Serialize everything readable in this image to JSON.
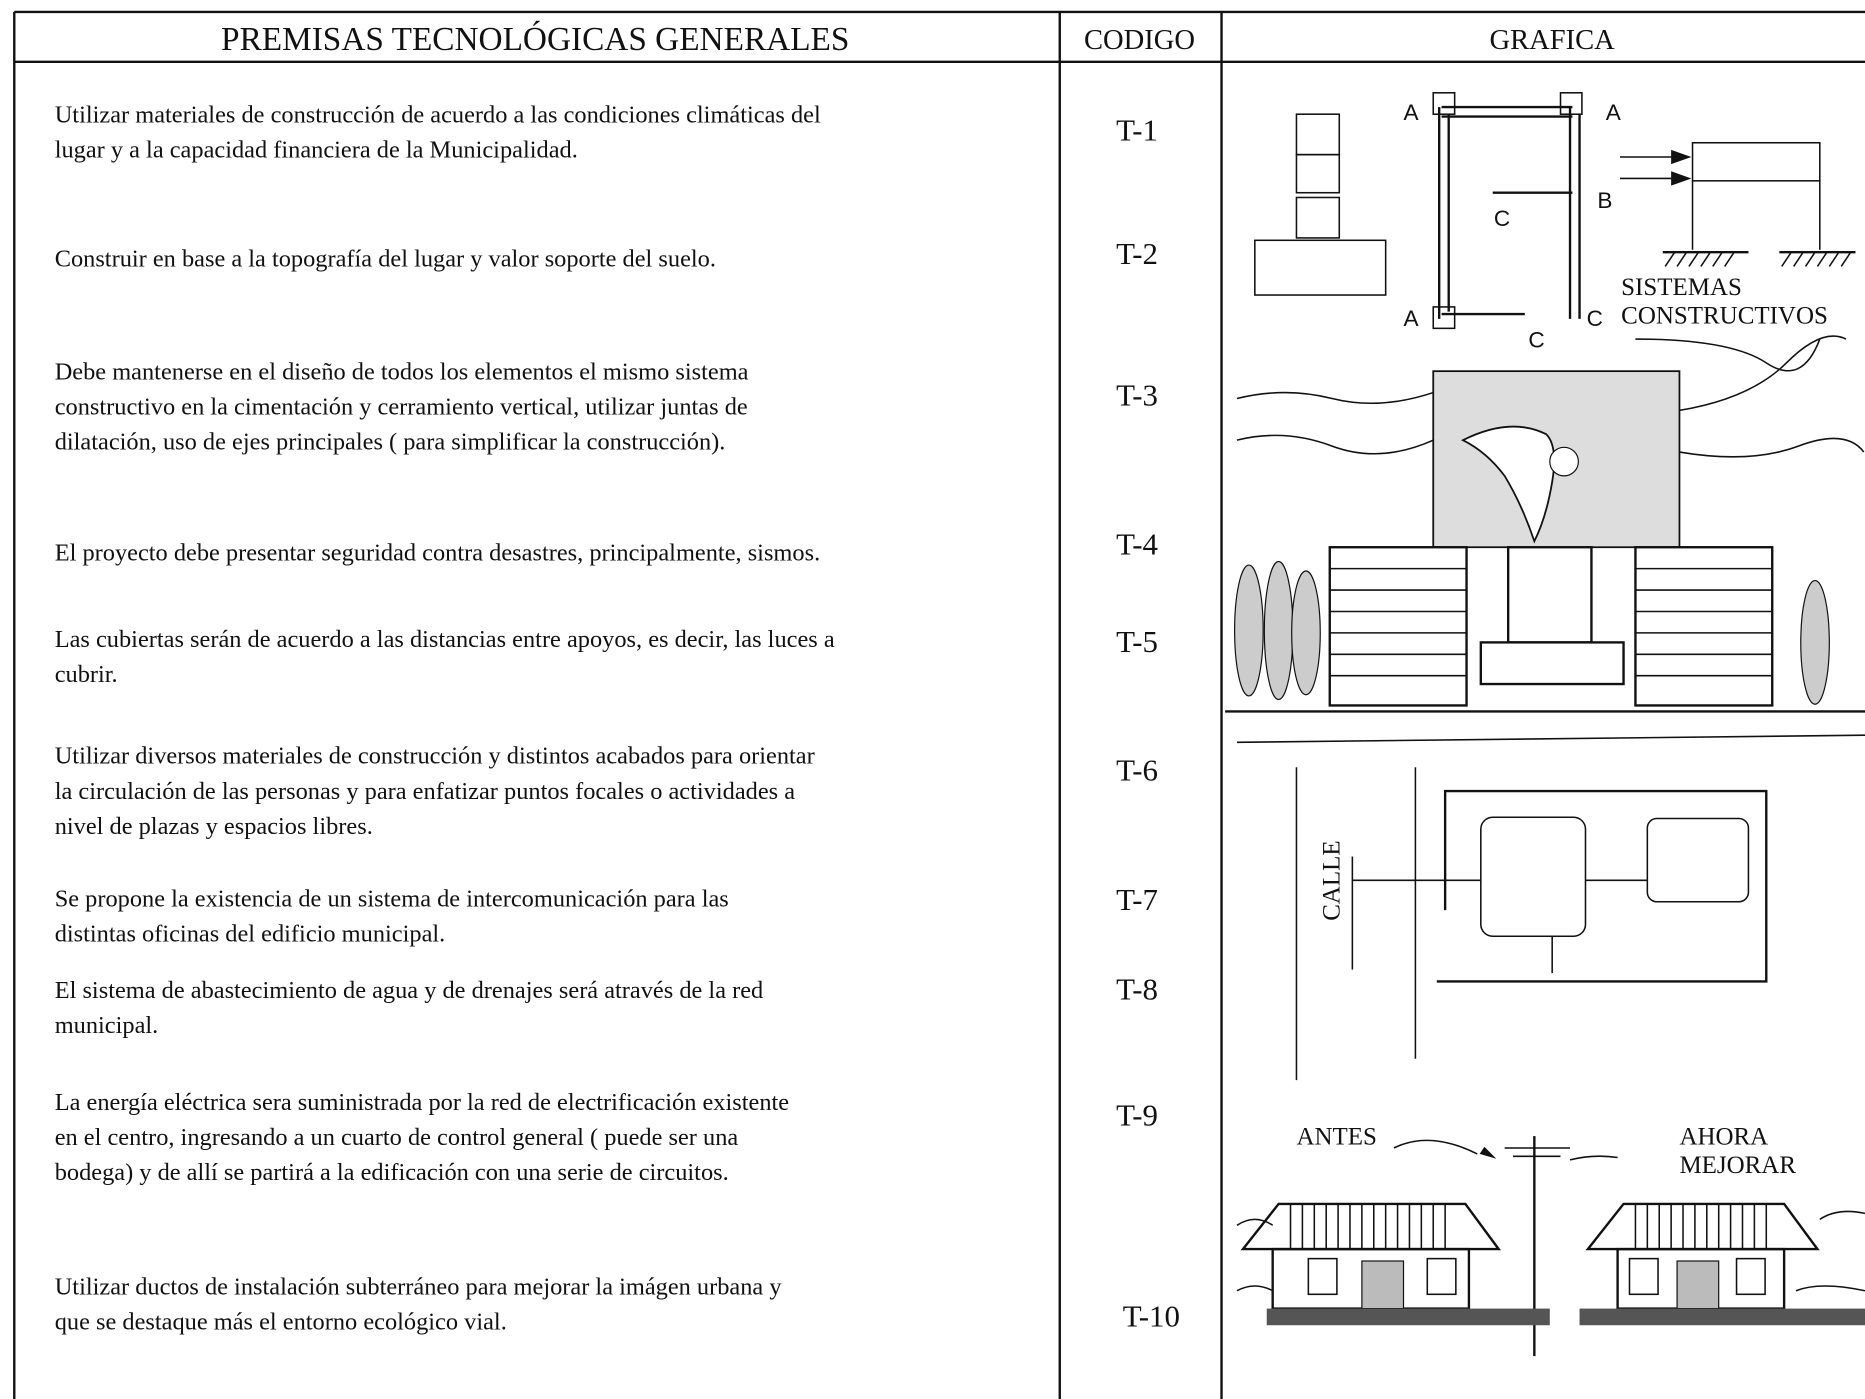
{
  "header": {
    "title": "PREMISAS TECNOLÓGICAS GENERALES",
    "code": "CODIGO",
    "graphic": "GRAFICA"
  },
  "rows": [
    {
      "text": [
        "Utilizar materiales de construcción de acuerdo a las condiciones climáticas del",
        "lugar y a la capacidad financiera de la Municipalidad."
      ],
      "code": "T-1"
    },
    {
      "text": [
        "Construir en base a la topografía del lugar y valor soporte del suelo."
      ],
      "code": "T-2"
    },
    {
      "text": [
        "Debe mantenerse en el diseño de todos los elementos el mismo sistema",
        "constructivo en la cimentación y cerramiento vertical, utilizar juntas de",
        "dilatación, uso de ejes principales ( para simplificar la construcción)."
      ],
      "code": "T-3"
    },
    {
      "text": [
        "El proyecto debe presentar seguridad contra desastres, principalmente, sismos."
      ],
      "code": "T-4"
    },
    {
      "text": [
        "Las cubiertas serán de acuerdo a las distancias entre apoyos, es decir, las luces a",
        "cubrir."
      ],
      "code": "T-5"
    },
    {
      "text": [
        "Utilizar diversos materiales de construcción y distintos acabados para orientar",
        "la circulación de las personas y para enfatizar puntos focales o actividades a",
        "nivel de plazas y espacios libres."
      ],
      "code": "T-6"
    },
    {
      "text": [
        "Se propone la existencia de un sistema de intercomunicación para las",
        "distintas oficinas del edificio municipal."
      ],
      "code": "T-7"
    },
    {
      "text": [
        "El sistema de abastecimiento de agua y de drenajes será através de la red",
        "municipal."
      ],
      "code": "T-8"
    },
    {
      "text": [
        "La energía eléctrica sera suministrada por la red de electrificación existente",
        "en el centro, ingresando a un cuarto de control general ( puede ser una",
        "bodega) y de allí se partirá a la edificación con una serie de circuitos."
      ],
      "code": "T-9"
    },
    {
      "text": [
        "Utilizar ductos de instalación subterráneo para mejorar la imágen urbana y",
        "que se destaque más el entorno ecológico vial."
      ],
      "code": "T-10"
    }
  ],
  "graphics": {
    "labels": [
      "A",
      "A",
      "A",
      "B",
      "C",
      "C",
      "C",
      "SISTEMAS",
      "CONSTRUCTIVOS",
      "CALLE",
      "ANTES",
      "AHORA",
      "MEJORAR"
    ]
  }
}
